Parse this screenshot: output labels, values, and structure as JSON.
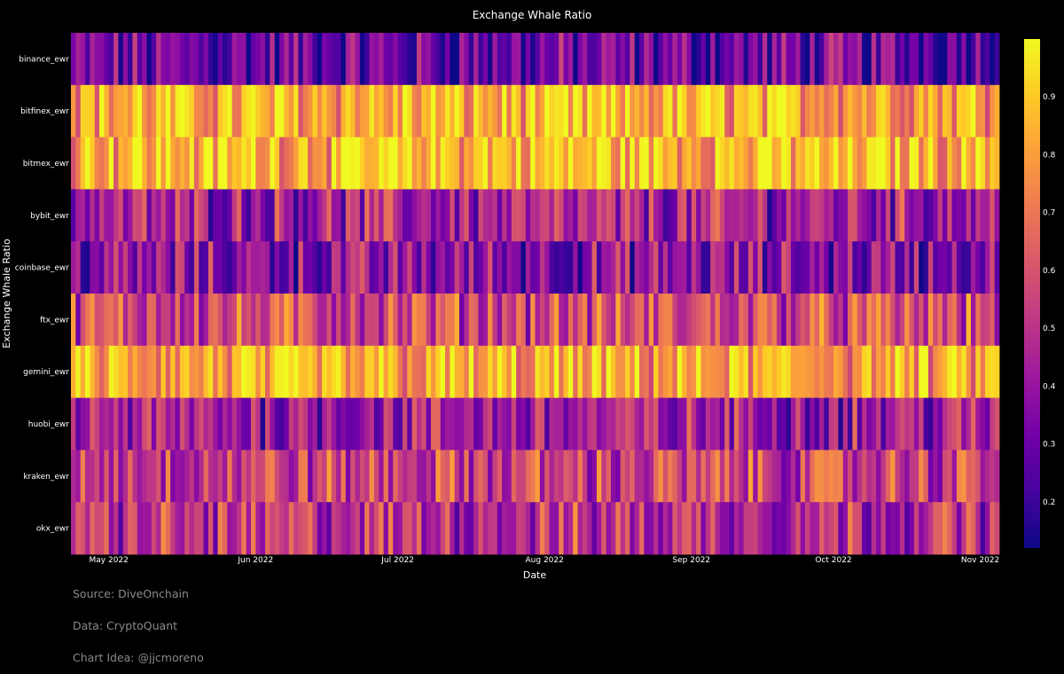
{
  "chart_data": {
    "type": "heatmap",
    "title": "Exchange Whale Ratio",
    "xlabel": "Date",
    "ylabel": "Exchange Whale Ratio",
    "x_range": [
      "2022-04-23",
      "2022-11-05"
    ],
    "x_ticks": [
      {
        "date": "2022-05-01",
        "label": "May 2022"
      },
      {
        "date": "2022-06-01",
        "label": "Jun 2022"
      },
      {
        "date": "2022-07-01",
        "label": "Jul 2022"
      },
      {
        "date": "2022-08-01",
        "label": "Aug 2022"
      },
      {
        "date": "2022-09-01",
        "label": "Sep 2022"
      },
      {
        "date": "2022-10-01",
        "label": "Oct 2022"
      },
      {
        "date": "2022-11-01",
        "label": "Nov 2022"
      }
    ],
    "rows": [
      "binance_ewr",
      "bitfinex_ewr",
      "bitmex_ewr",
      "bybit_ewr",
      "coinbase_ewr",
      "ftx_ewr",
      "gemini_ewr",
      "huobi_ewr",
      "kraken_ewr",
      "okx_ewr"
    ],
    "row_means": [
      0.3,
      0.83,
      0.87,
      0.44,
      0.37,
      0.58,
      0.8,
      0.43,
      0.55,
      0.5
    ],
    "colorscale": "Plasma",
    "zrange": [
      0.12,
      1.0
    ],
    "colorbar": {
      "ticks": [
        0.2,
        0.3,
        0.4,
        0.5,
        0.6,
        0.7,
        0.8,
        0.9
      ],
      "labels": [
        "0.2",
        "0.3",
        "0.4",
        "0.5",
        "0.6",
        "0.7",
        "0.8",
        "0.9"
      ]
    },
    "grid": false
  },
  "source": {
    "line1": "Source: DiveOnchain",
    "line2": "Data: CryptoQuant",
    "line3": "Chart Idea: @jjcmoreno"
  }
}
